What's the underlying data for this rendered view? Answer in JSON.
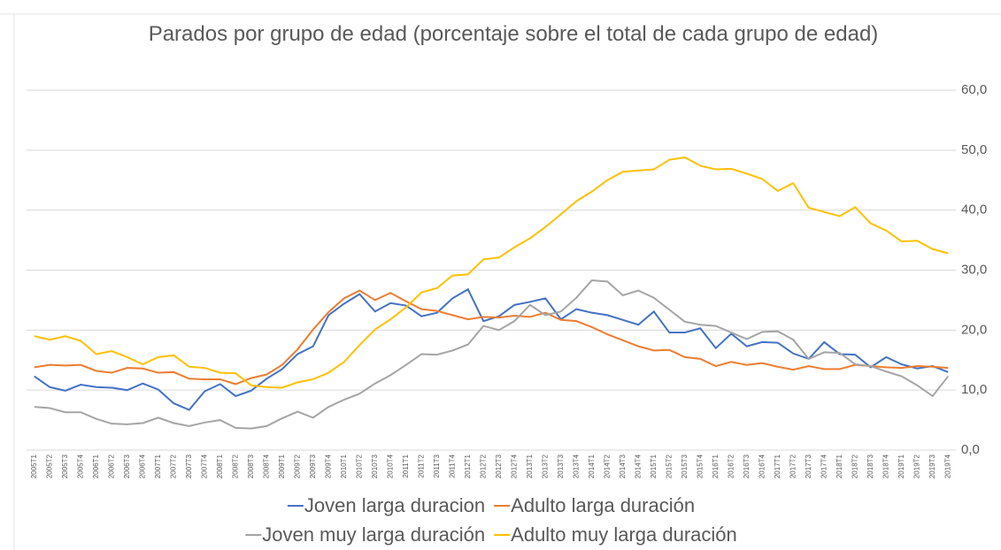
{
  "chart_data": {
    "type": "line",
    "title": "Parados por grupo de edad (porcentaje sobre el total de cada grupo de edad)",
    "categories": [
      "2005T1",
      "2005T2",
      "2005T3",
      "2005T4",
      "2006T1",
      "2006T2",
      "2006T3",
      "2006T4",
      "2007T1",
      "2007T2",
      "2007T3",
      "2007T4",
      "2008T1",
      "2008T2",
      "2008T3",
      "2008T4",
      "2009T1",
      "2009T2",
      "2009T3",
      "2009T4",
      "2010T1",
      "2010T2",
      "2010T3",
      "2010T4",
      "2011T1",
      "2011T2",
      "2011T3",
      "2011T4",
      "2012T1",
      "2012T2",
      "2012T3",
      "2012T4",
      "2013T1",
      "2013T2",
      "2013T3",
      "2013T4",
      "2014T1",
      "2014T2",
      "2014T3",
      "2014T4",
      "2015T1",
      "2015T2",
      "2015T3",
      "2015T4",
      "2016T1",
      "2016T2",
      "2016T3",
      "2016T4",
      "2017T1",
      "2017T2",
      "2017T3",
      "2017T4",
      "2018T1",
      "2018T2",
      "2018T3",
      "2018T4",
      "2019T1",
      "2019T2",
      "2019T3",
      "2019T4"
    ],
    "series": [
      {
        "name": "Joven larga duracion",
        "color": "#4472c4",
        "values": [
          12.3,
          10.5,
          9.9,
          10.9,
          10.5,
          10.4,
          10.0,
          11.1,
          10.1,
          7.8,
          6.7,
          9.8,
          11.0,
          9.0,
          9.9,
          11.9,
          13.5,
          16.0,
          17.3,
          22.5,
          24.4,
          26.0,
          23.1,
          24.5,
          24.1,
          22.3,
          22.9,
          25.3,
          26.8,
          21.5,
          22.3,
          24.2,
          24.7,
          25.3,
          21.8,
          23.5,
          22.9,
          22.5,
          21.7,
          20.9,
          23.1,
          19.6,
          19.6,
          20.3,
          17.0,
          19.4,
          17.3,
          18.0,
          17.9,
          16.1,
          15.2,
          18.0,
          16.0,
          15.9,
          13.8,
          15.5,
          14.3,
          13.6,
          14.0,
          13.0
        ]
      },
      {
        "name": "Adulto larga duración",
        "color": "#ed7d31",
        "values": [
          13.8,
          14.2,
          14.1,
          14.2,
          13.2,
          12.9,
          13.7,
          13.6,
          12.9,
          13.0,
          11.9,
          11.8,
          11.8,
          11.0,
          12.0,
          12.6,
          14.2,
          16.8,
          20.1,
          23.0,
          25.3,
          26.6,
          25.0,
          26.2,
          24.8,
          23.5,
          23.2,
          22.5,
          21.8,
          22.2,
          22.1,
          22.4,
          22.2,
          22.9,
          21.7,
          21.5,
          20.5,
          19.3,
          18.3,
          17.3,
          16.6,
          16.7,
          15.5,
          15.2,
          14.0,
          14.7,
          14.2,
          14.5,
          13.9,
          13.4,
          14.0,
          13.5,
          13.5,
          14.2,
          14.0,
          13.8,
          13.7,
          14.0,
          13.9,
          13.7
        ]
      },
      {
        "name": "Joven muy larga duración",
        "color": "#a5a5a5",
        "values": [
          7.2,
          7.0,
          6.3,
          6.3,
          5.2,
          4.4,
          4.3,
          4.5,
          5.4,
          4.5,
          4.0,
          4.6,
          5.0,
          3.7,
          3.6,
          4.0,
          5.3,
          6.4,
          5.4,
          7.2,
          8.4,
          9.4,
          11.1,
          12.5,
          14.2,
          16.0,
          15.9,
          16.6,
          17.6,
          20.7,
          20.0,
          21.5,
          24.2,
          22.5,
          23.1,
          25.4,
          28.3,
          28.1,
          25.8,
          26.6,
          25.4,
          23.4,
          21.4,
          20.9,
          20.7,
          19.6,
          18.5,
          19.7,
          19.8,
          18.4,
          15.2,
          16.3,
          16.2,
          14.3,
          14.0,
          13.1,
          12.3,
          10.8,
          9.0,
          12.3
        ]
      },
      {
        "name": "Adulto muy larga duración",
        "color": "#ffc000",
        "values": [
          19.0,
          18.4,
          19.0,
          18.2,
          16.0,
          16.5,
          15.5,
          14.3,
          15.5,
          15.8,
          13.9,
          13.7,
          12.9,
          12.8,
          10.8,
          10.5,
          10.4,
          11.3,
          11.8,
          12.9,
          14.7,
          17.5,
          20.1,
          21.8,
          23.8,
          26.3,
          27.0,
          29.1,
          29.3,
          31.8,
          32.1,
          33.8,
          35.3,
          37.2,
          39.3,
          41.5,
          43.1,
          45.0,
          46.4,
          46.6,
          46.8,
          48.4,
          48.8,
          47.4,
          46.8,
          46.9,
          46.1,
          45.2,
          43.2,
          44.5,
          40.4,
          39.7,
          39.0,
          40.5,
          37.8,
          36.6,
          34.8,
          34.9,
          33.5,
          32.8
        ]
      }
    ],
    "ylim": [
      0,
      60
    ],
    "yticks": [
      {
        "value": 0,
        "label": "0,0"
      },
      {
        "value": 10,
        "label": "10,0"
      },
      {
        "value": 20,
        "label": "20,0"
      },
      {
        "value": 30,
        "label": "30,0"
      },
      {
        "value": 40,
        "label": "40,0"
      },
      {
        "value": 50,
        "label": "50,0"
      },
      {
        "value": 60,
        "label": "60,0"
      }
    ],
    "grid": true,
    "legend": "bottom"
  }
}
